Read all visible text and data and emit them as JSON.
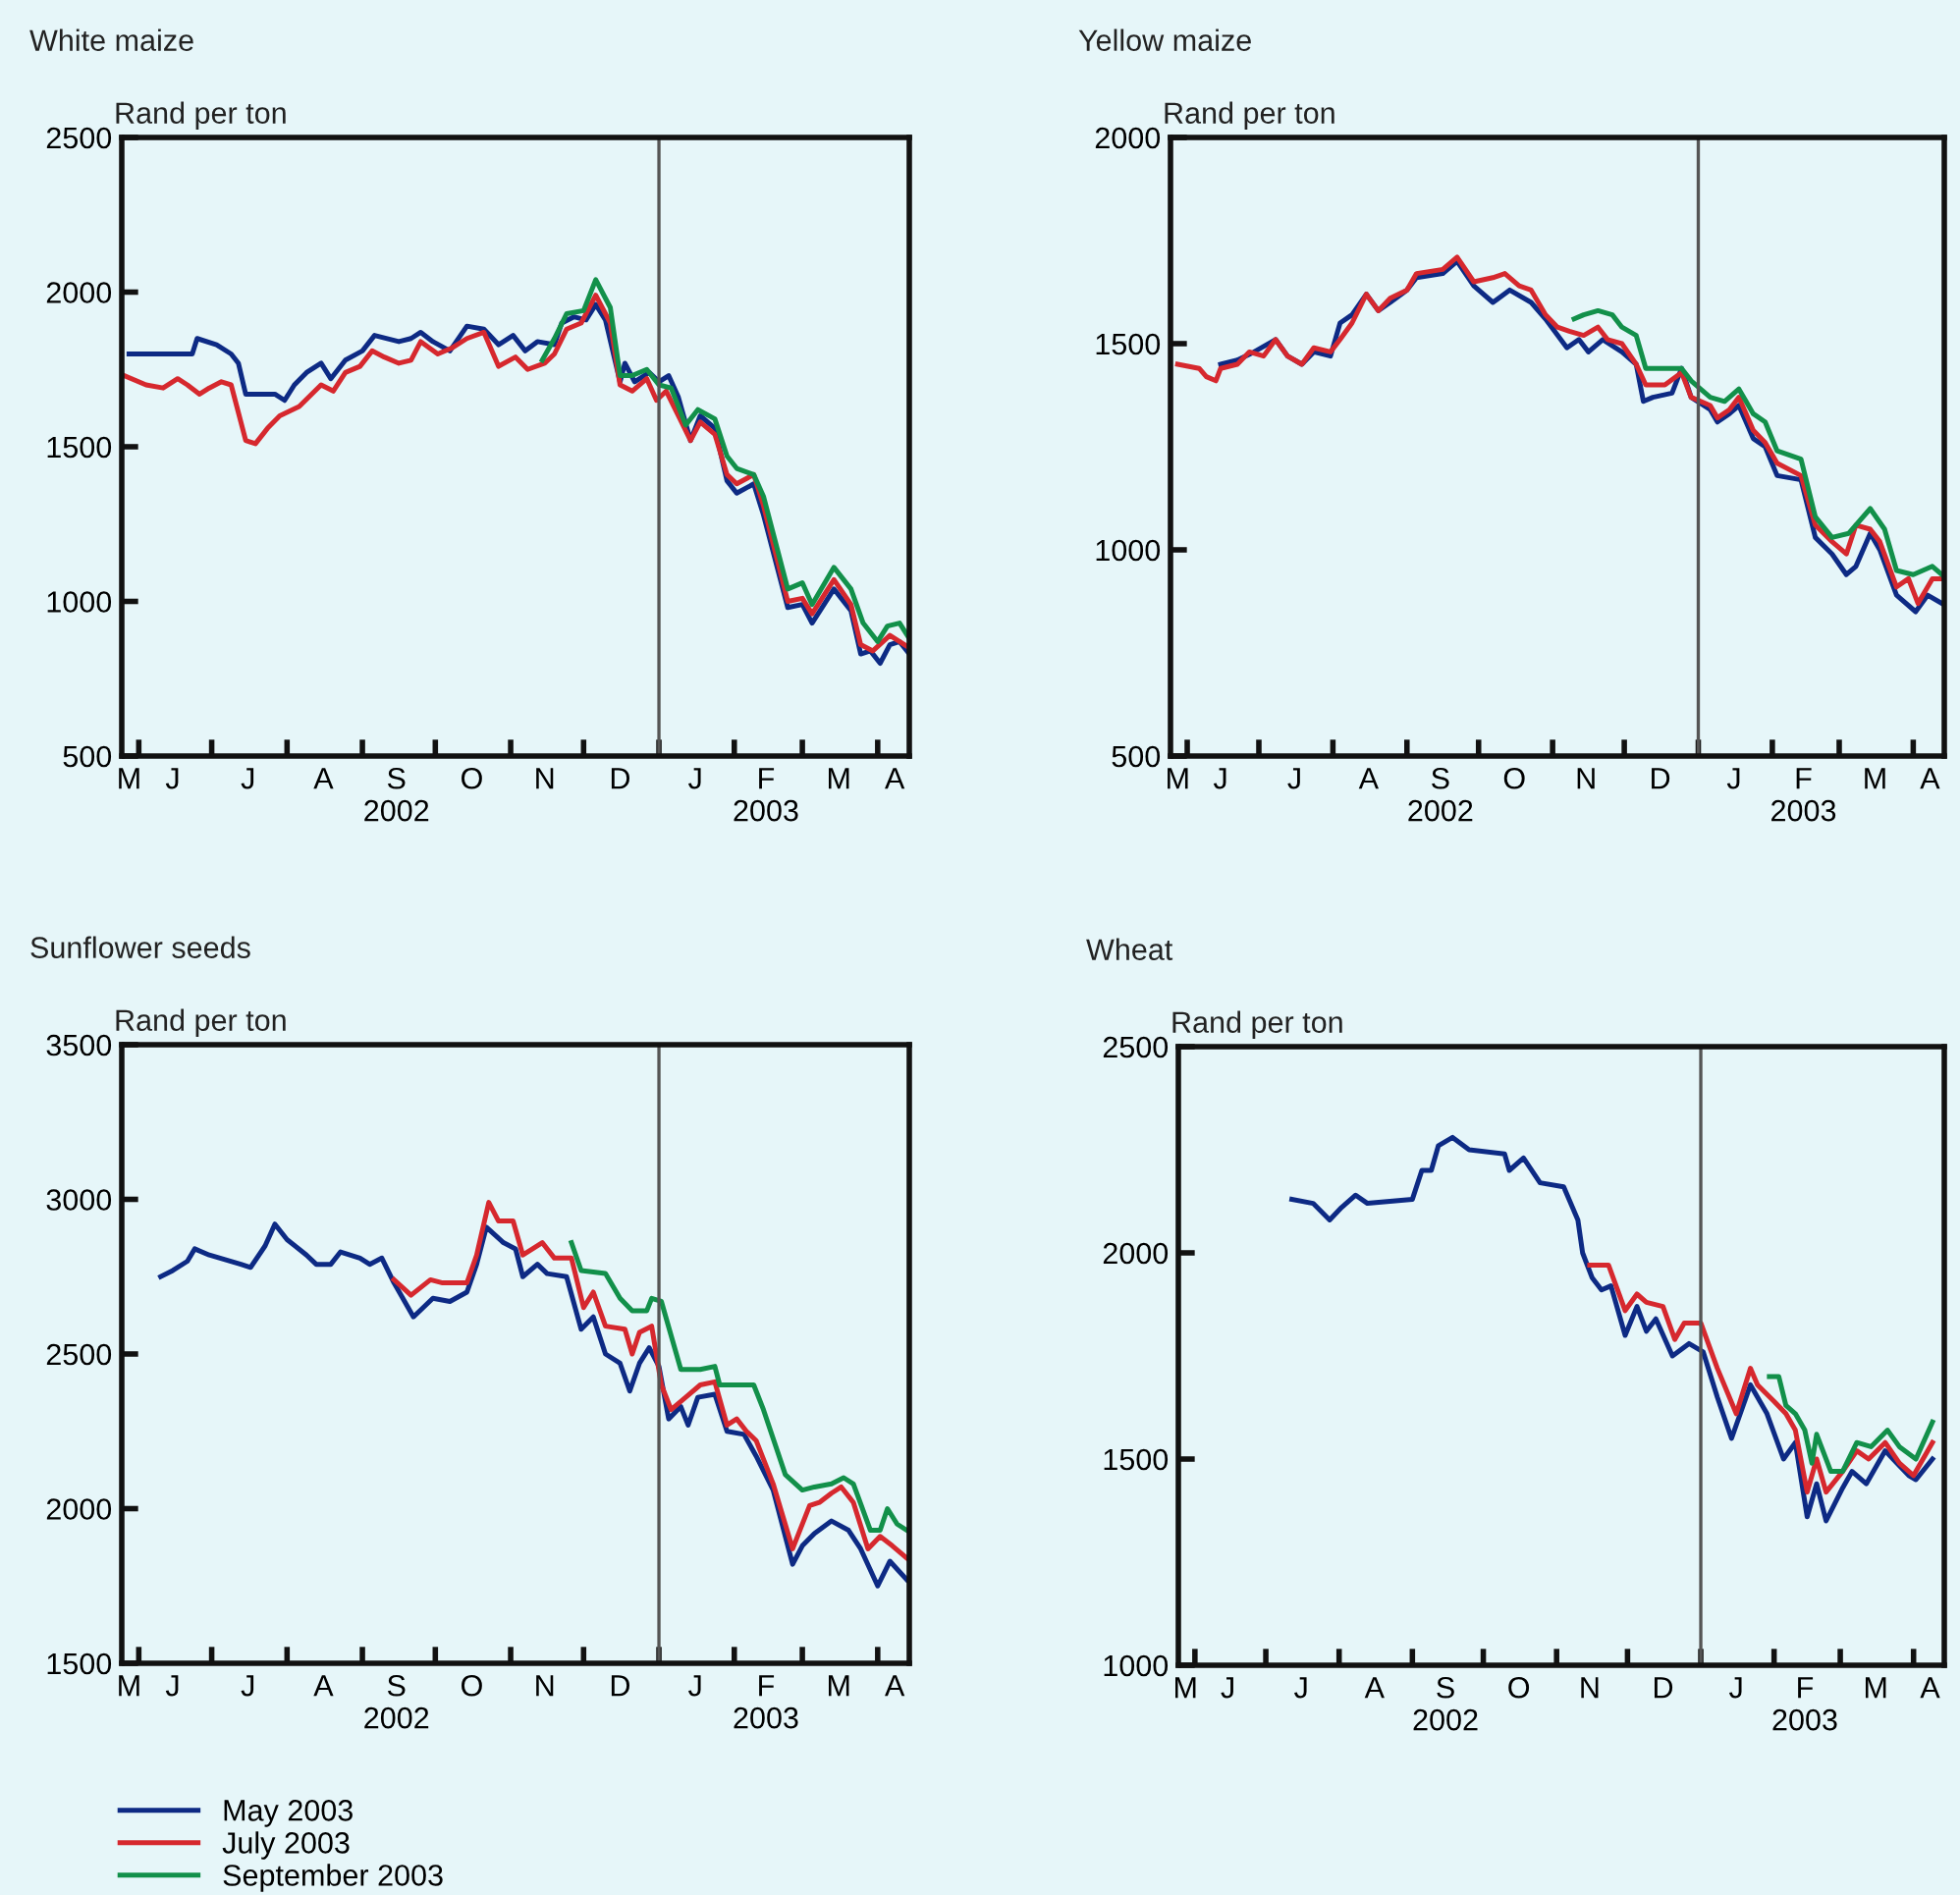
{
  "chart_data": [
    {
      "type": "line",
      "title": "White maize",
      "ylabel": "Rand per ton",
      "xlim": [
        "2002-05-25",
        "2003-04-14"
      ],
      "legend": "bottom",
      "xticks": [
        {
          "value": "2002-05-28",
          "label": "M"
        },
        {
          "value": "2002-06-01",
          "label": null
        },
        {
          "value": "2002-06-15",
          "label": "J"
        },
        {
          "value": "2002-07-01",
          "label": null
        },
        {
          "value": "2002-07-16",
          "label": "J"
        },
        {
          "value": "2002-08-01",
          "label": null
        },
        {
          "value": "2002-08-16",
          "label": "A"
        },
        {
          "value": "2002-09-01",
          "label": null
        },
        {
          "value": "2002-09-15",
          "label": "S\n2002"
        },
        {
          "value": "2002-10-01",
          "label": null
        },
        {
          "value": "2002-10-16",
          "label": "O"
        },
        {
          "value": "2002-11-01",
          "label": null
        },
        {
          "value": "2002-11-15",
          "label": "N"
        },
        {
          "value": "2002-12-01",
          "label": null
        },
        {
          "value": "2002-12-16",
          "label": "D"
        },
        {
          "value": "2003-01-01",
          "label": null
        },
        {
          "value": "2003-01-16",
          "label": "J"
        },
        {
          "value": "2003-02-01",
          "label": null
        },
        {
          "value": "2003-02-14",
          "label": "F\n2003"
        },
        {
          "value": "2003-03-01",
          "label": null
        },
        {
          "value": "2003-03-16",
          "label": "M"
        },
        {
          "value": "2003-04-01",
          "label": null
        },
        {
          "value": "2003-04-08",
          "label": "A"
        }
      ],
      "ylim": [
        500,
        2500
      ],
      "yticks": [
        500,
        1000,
        1500,
        2000,
        2500
      ],
      "ref_lines": [
        {
          "axis": "x",
          "value": "2003-01-01",
          "color": "#555555"
        }
      ],
      "series": [
        {
          "name": "May 2003",
          "color": "#0d2a84",
          "x": [
            "2002-05-28",
            "2002-06-23",
            "2002-06-25",
            "2002-07-03",
            "2002-07-09",
            "2002-07-12",
            "2002-07-15",
            "2002-07-21",
            "2002-07-27",
            "2002-07-31",
            "2002-08-04",
            "2002-08-09",
            "2002-08-15",
            "2002-08-19",
            "2002-08-25",
            "2002-09-01",
            "2002-09-06",
            "2002-09-16",
            "2002-09-21",
            "2002-09-25",
            "2002-09-30",
            "2002-10-07",
            "2002-10-14",
            "2002-10-21",
            "2002-10-27",
            "2002-11-02",
            "2002-11-07",
            "2002-11-12",
            "2002-11-19",
            "2002-11-22",
            "2002-11-27",
            "2002-12-02",
            "2002-12-06",
            "2002-12-10",
            "2002-12-16",
            "2002-12-18",
            "2002-12-22",
            "2002-12-28",
            "2003-01-01",
            "2003-01-05",
            "2003-01-09",
            "2003-01-14",
            "2003-01-18",
            "2003-01-24",
            "2003-01-29",
            "2003-02-02",
            "2003-02-09",
            "2003-02-13",
            "2003-02-23",
            "2003-03-01",
            "2003-03-05",
            "2003-03-14",
            "2003-03-21",
            "2003-03-25",
            "2003-03-29",
            "2003-04-02",
            "2003-04-06",
            "2003-04-10",
            "2003-04-14"
          ],
          "values": [
            1800,
            1800,
            1850,
            1830,
            1800,
            1770,
            1670,
            1670,
            1670,
            1650,
            1700,
            1740,
            1770,
            1720,
            1780,
            1810,
            1860,
            1840,
            1850,
            1870,
            1840,
            1810,
            1890,
            1880,
            1830,
            1860,
            1810,
            1840,
            1830,
            1900,
            1920,
            1910,
            1960,
            1910,
            1710,
            1770,
            1710,
            1740,
            1710,
            1730,
            1660,
            1520,
            1600,
            1560,
            1390,
            1350,
            1380,
            1280,
            980,
            990,
            930,
            1040,
            970,
            830,
            840,
            800,
            860,
            870,
            830
          ]
        },
        {
          "name": "July 2003",
          "color": "#d6282e",
          "x": [
            "2002-05-26",
            "2002-06-04",
            "2002-06-11",
            "2002-06-17",
            "2002-06-21",
            "2002-06-26",
            "2002-06-30",
            "2002-07-05",
            "2002-07-09",
            "2002-07-15",
            "2002-07-19",
            "2002-07-24",
            "2002-07-29",
            "2002-08-06",
            "2002-08-15",
            "2002-08-20",
            "2002-08-25",
            "2002-08-31",
            "2002-09-05",
            "2002-09-10",
            "2002-09-16",
            "2002-09-21",
            "2002-09-25",
            "2002-10-02",
            "2002-10-08",
            "2002-10-14",
            "2002-10-21",
            "2002-10-27",
            "2002-11-03",
            "2002-11-08",
            "2002-11-15",
            "2002-11-19",
            "2002-11-24",
            "2002-11-30",
            "2002-12-06",
            "2002-12-12",
            "2002-12-16",
            "2002-12-21",
            "2002-12-27",
            "2002-12-31",
            "2003-01-04",
            "2003-01-09",
            "2003-01-14",
            "2003-01-18",
            "2003-01-24",
            "2003-01-29",
            "2003-02-02",
            "2003-02-09",
            "2003-02-13",
            "2003-02-23",
            "2003-03-01",
            "2003-03-05",
            "2003-03-14",
            "2003-03-21",
            "2003-03-25",
            "2003-03-30",
            "2003-04-06",
            "2003-04-14"
          ],
          "values": [
            1730,
            1700,
            1690,
            1720,
            1700,
            1670,
            1690,
            1710,
            1700,
            1520,
            1510,
            1560,
            1600,
            1630,
            1700,
            1680,
            1740,
            1760,
            1810,
            1790,
            1770,
            1780,
            1840,
            1800,
            1820,
            1850,
            1870,
            1760,
            1790,
            1750,
            1770,
            1800,
            1880,
            1900,
            1990,
            1900,
            1700,
            1680,
            1720,
            1650,
            1680,
            1600,
            1520,
            1580,
            1540,
            1410,
            1380,
            1410,
            1310,
            1000,
            1010,
            960,
            1070,
            990,
            860,
            840,
            890,
            850
          ]
        },
        {
          "name": "September 2003",
          "color": "#12904a",
          "x": [
            "2002-11-14",
            "2002-11-19",
            "2002-11-24",
            "2002-12-01",
            "2002-12-06",
            "2002-12-12",
            "2002-12-16",
            "2002-12-21",
            "2002-12-27",
            "2003-01-01",
            "2003-01-06",
            "2003-01-12",
            "2003-01-17",
            "2003-01-24",
            "2003-01-29",
            "2003-02-02",
            "2003-02-09",
            "2003-02-13",
            "2003-02-23",
            "2003-03-01",
            "2003-03-05",
            "2003-03-14",
            "2003-03-21",
            "2003-03-26",
            "2003-04-01",
            "2003-04-05",
            "2003-04-10",
            "2003-04-14"
          ],
          "values": [
            1780,
            1850,
            1930,
            1940,
            2040,
            1950,
            1730,
            1730,
            1750,
            1700,
            1690,
            1570,
            1620,
            1590,
            1470,
            1430,
            1410,
            1340,
            1040,
            1060,
            990,
            1110,
            1040,
            930,
            870,
            920,
            930,
            880
          ]
        }
      ]
    },
    {
      "type": "line",
      "title": "Yellow maize",
      "ylabel": "Rand per ton",
      "xlim": [
        "2002-05-25",
        "2003-04-14"
      ],
      "xticks": [
        {
          "value": "2002-05-28",
          "label": "M"
        },
        {
          "value": "2002-06-01",
          "label": null
        },
        {
          "value": "2002-06-15",
          "label": "J"
        },
        {
          "value": "2002-07-01",
          "label": null
        },
        {
          "value": "2002-07-16",
          "label": "J"
        },
        {
          "value": "2002-08-01",
          "label": null
        },
        {
          "value": "2002-08-16",
          "label": "A"
        },
        {
          "value": "2002-09-01",
          "label": null
        },
        {
          "value": "2002-09-15",
          "label": "S\n2002"
        },
        {
          "value": "2002-10-01",
          "label": null
        },
        {
          "value": "2002-10-16",
          "label": "O"
        },
        {
          "value": "2002-11-01",
          "label": null
        },
        {
          "value": "2002-11-15",
          "label": "N"
        },
        {
          "value": "2002-12-01",
          "label": null
        },
        {
          "value": "2002-12-16",
          "label": "D"
        },
        {
          "value": "2003-01-01",
          "label": null
        },
        {
          "value": "2003-01-16",
          "label": "J"
        },
        {
          "value": "2003-02-01",
          "label": null
        },
        {
          "value": "2003-02-14",
          "label": "F\n2003"
        },
        {
          "value": "2003-03-01",
          "label": null
        },
        {
          "value": "2003-03-16",
          "label": "M"
        },
        {
          "value": "2003-04-01",
          "label": null
        },
        {
          "value": "2003-04-08",
          "label": "A"
        }
      ],
      "ylim": [
        500,
        2000
      ],
      "yticks": [
        500,
        1000,
        1500,
        2000
      ],
      "ref_lines": [
        {
          "axis": "x",
          "value": "2003-01-01",
          "color": "#555555"
        }
      ],
      "series": [
        {
          "color": "#0d2a84",
          "x": [
            "2002-06-15",
            "2002-06-22",
            "2002-06-29",
            "2002-07-08",
            "2002-07-13",
            "2002-07-19",
            "2002-07-24",
            "2002-07-31",
            "2002-08-04",
            "2002-08-09",
            "2002-08-15",
            "2002-08-20",
            "2002-08-25",
            "2002-09-01",
            "2002-09-05",
            "2002-09-16",
            "2002-09-22",
            "2002-09-29",
            "2002-10-07",
            "2002-10-14",
            "2002-10-23",
            "2002-10-29",
            "2002-11-07",
            "2002-11-12",
            "2002-11-16",
            "2002-11-22",
            "2002-11-30",
            "2002-12-06",
            "2002-12-09",
            "2002-12-13",
            "2002-12-21",
            "2002-12-25",
            "2002-12-29",
            "2003-01-06",
            "2003-01-09",
            "2003-01-14",
            "2003-01-18",
            "2003-01-24",
            "2003-01-29",
            "2003-02-03",
            "2003-02-13",
            "2003-02-19",
            "2003-02-26",
            "2003-03-04",
            "2003-03-08",
            "2003-03-14",
            "2003-03-18",
            "2003-03-25",
            "2003-04-02",
            "2003-04-07",
            "2003-04-13"
          ],
          "values": [
            1450,
            1460,
            1480,
            1510,
            1470,
            1450,
            1480,
            1470,
            1550,
            1570,
            1620,
            1580,
            1600,
            1630,
            1660,
            1670,
            1700,
            1640,
            1600,
            1630,
            1600,
            1560,
            1490,
            1510,
            1480,
            1510,
            1480,
            1450,
            1360,
            1370,
            1380,
            1440,
            1370,
            1340,
            1310,
            1330,
            1350,
            1270,
            1250,
            1180,
            1170,
            1030,
            990,
            940,
            960,
            1040,
            1000,
            890,
            850,
            890,
            870
          ]
        },
        {
          "color": "#d6282e",
          "x": [
            "2002-05-28",
            "2002-06-06",
            "2002-06-09",
            "2002-06-13",
            "2002-06-15",
            "2002-06-22",
            "2002-06-27",
            "2002-07-03",
            "2002-07-08",
            "2002-07-13",
            "2002-07-19",
            "2002-07-24",
            "2002-07-31",
            "2002-08-04",
            "2002-08-09",
            "2002-08-15",
            "2002-08-20",
            "2002-08-25",
            "2002-09-01",
            "2002-09-05",
            "2002-09-16",
            "2002-09-22",
            "2002-09-29",
            "2002-10-07",
            "2002-10-12",
            "2002-10-18",
            "2002-10-23",
            "2002-10-29",
            "2002-11-03",
            "2002-11-08",
            "2002-11-14",
            "2002-11-20",
            "2002-11-24",
            "2002-11-30",
            "2002-12-06",
            "2002-12-10",
            "2002-12-18",
            "2002-12-25",
            "2002-12-29",
            "2003-01-06",
            "2003-01-09",
            "2003-01-14",
            "2003-01-18",
            "2003-01-24",
            "2003-01-29",
            "2003-02-03",
            "2003-02-13",
            "2003-02-19",
            "2003-02-26",
            "2003-03-04",
            "2003-03-08",
            "2003-03-14",
            "2003-03-18",
            "2003-03-25",
            "2003-03-30",
            "2003-04-03",
            "2003-04-09",
            "2003-04-13"
          ],
          "values": [
            1450,
            1440,
            1420,
            1410,
            1440,
            1450,
            1480,
            1470,
            1510,
            1470,
            1450,
            1490,
            1480,
            1510,
            1550,
            1620,
            1580,
            1610,
            1630,
            1670,
            1680,
            1710,
            1650,
            1660,
            1670,
            1640,
            1630,
            1570,
            1540,
            1530,
            1520,
            1540,
            1510,
            1500,
            1450,
            1400,
            1400,
            1430,
            1370,
            1350,
            1320,
            1340,
            1370,
            1290,
            1260,
            1210,
            1180,
            1060,
            1020,
            990,
            1060,
            1050,
            1020,
            910,
            930,
            870,
            930,
            930
          ]
        },
        {
          "color": "#12904a",
          "x": [
            "2002-11-10",
            "2002-11-14",
            "2002-11-20",
            "2002-11-26",
            "2002-11-30",
            "2002-12-06",
            "2002-12-10",
            "2002-12-18",
            "2002-12-25",
            "2002-12-29",
            "2003-01-06",
            "2003-01-12",
            "2003-01-18",
            "2003-01-24",
            "2003-01-29",
            "2003-02-03",
            "2003-02-13",
            "2003-02-19",
            "2003-02-26",
            "2003-03-05",
            "2003-03-14",
            "2003-03-20",
            "2003-03-25",
            "2003-04-01",
            "2003-04-09",
            "2003-04-13"
          ],
          "values": [
            1560,
            1570,
            1580,
            1570,
            1540,
            1520,
            1440,
            1440,
            1440,
            1410,
            1370,
            1360,
            1390,
            1330,
            1310,
            1240,
            1220,
            1080,
            1030,
            1040,
            1100,
            1050,
            950,
            940,
            960,
            940
          ]
        }
      ]
    },
    {
      "type": "line",
      "title": "Sunflower seeds",
      "ylabel": "Rand per ton",
      "xlim": [
        "2002-05-25",
        "2003-04-14"
      ],
      "xticks": [
        {
          "value": "2002-05-28",
          "label": "M"
        },
        {
          "value": "2002-06-01",
          "label": null
        },
        {
          "value": "2002-06-15",
          "label": "J"
        },
        {
          "value": "2002-07-01",
          "label": null
        },
        {
          "value": "2002-07-16",
          "label": "J"
        },
        {
          "value": "2002-08-01",
          "label": null
        },
        {
          "value": "2002-08-16",
          "label": "A"
        },
        {
          "value": "2002-09-01",
          "label": null
        },
        {
          "value": "2002-09-15",
          "label": "S\n2002"
        },
        {
          "value": "2002-10-01",
          "label": null
        },
        {
          "value": "2002-10-16",
          "label": "O"
        },
        {
          "value": "2002-11-01",
          "label": null
        },
        {
          "value": "2002-11-15",
          "label": "N"
        },
        {
          "value": "2002-12-01",
          "label": null
        },
        {
          "value": "2002-12-16",
          "label": "D"
        },
        {
          "value": "2003-01-01",
          "label": null
        },
        {
          "value": "2003-01-16",
          "label": "J"
        },
        {
          "value": "2003-02-01",
          "label": null
        },
        {
          "value": "2003-02-14",
          "label": "F\n2003"
        },
        {
          "value": "2003-03-01",
          "label": null
        },
        {
          "value": "2003-03-16",
          "label": "M"
        },
        {
          "value": "2003-04-01",
          "label": null
        },
        {
          "value": "2003-04-08",
          "label": "A"
        }
      ],
      "ylim": [
        1500,
        3500
      ],
      "yticks": [
        1500,
        2000,
        2500,
        3000,
        3500
      ],
      "ref_lines": [
        {
          "axis": "x",
          "value": "2003-01-01",
          "color": "#555555"
        }
      ],
      "series": [
        {
          "color": "#0d2a84",
          "x": [
            "2002-06-10",
            "2002-06-15",
            "2002-06-21",
            "2002-06-24",
            "2002-06-30",
            "2002-07-13",
            "2002-07-17",
            "2002-07-23",
            "2002-07-27",
            "2002-08-01",
            "2002-08-09",
            "2002-08-13",
            "2002-08-19",
            "2002-08-23",
            "2002-08-31",
            "2002-09-04",
            "2002-09-09",
            "2002-09-14",
            "2002-09-22",
            "2002-09-26",
            "2002-09-30",
            "2002-10-07",
            "2002-10-14",
            "2002-10-18",
            "2002-10-22",
            "2002-10-29",
            "2002-11-03",
            "2002-11-06",
            "2002-11-12",
            "2002-11-16",
            "2002-11-24",
            "2002-11-30",
            "2002-12-05",
            "2002-12-10",
            "2002-12-16",
            "2002-12-20",
            "2002-12-24",
            "2002-12-28",
            "2003-01-01",
            "2003-01-05",
            "2003-01-10",
            "2003-01-13",
            "2003-01-17",
            "2003-01-24",
            "2003-01-29",
            "2003-02-05",
            "2003-02-10",
            "2003-02-17",
            "2003-02-25",
            "2003-03-01",
            "2003-03-06",
            "2003-03-13",
            "2003-03-20",
            "2003-03-25",
            "2003-04-01",
            "2003-04-06",
            "2003-04-13"
          ],
          "values": [
            2750,
            2770,
            2800,
            2840,
            2820,
            2790,
            2780,
            2850,
            2920,
            2870,
            2820,
            2790,
            2790,
            2830,
            2810,
            2790,
            2810,
            2730,
            2620,
            2650,
            2680,
            2670,
            2700,
            2790,
            2910,
            2860,
            2840,
            2750,
            2790,
            2760,
            2750,
            2580,
            2620,
            2500,
            2470,
            2380,
            2470,
            2520,
            2460,
            2290,
            2330,
            2270,
            2360,
            2370,
            2250,
            2240,
            2170,
            2060,
            1820,
            1880,
            1920,
            1960,
            1930,
            1870,
            1750,
            1830,
            1770
          ]
        },
        {
          "color": "#d6282e",
          "x": [
            "2002-09-14",
            "2002-09-21",
            "2002-09-29",
            "2002-10-04",
            "2002-10-14",
            "2002-10-18",
            "2002-10-23",
            "2002-10-27",
            "2002-11-02",
            "2002-11-06",
            "2002-11-14",
            "2002-11-19",
            "2002-11-26",
            "2002-12-01",
            "2002-12-05",
            "2002-12-10",
            "2002-12-18",
            "2002-12-21",
            "2002-12-24",
            "2002-12-29",
            "2003-01-02",
            "2003-01-06",
            "2003-01-12",
            "2003-01-18",
            "2003-01-24",
            "2003-01-29",
            "2003-02-02",
            "2003-02-06",
            "2003-02-10",
            "2003-02-17",
            "2003-02-25",
            "2003-03-04",
            "2003-03-08",
            "2003-03-13",
            "2003-03-17",
            "2003-03-22",
            "2003-03-28",
            "2003-04-02",
            "2003-04-07",
            "2003-04-13"
          ],
          "values": [
            2740,
            2690,
            2740,
            2730,
            2730,
            2820,
            2990,
            2930,
            2930,
            2820,
            2860,
            2810,
            2810,
            2650,
            2700,
            2590,
            2580,
            2500,
            2570,
            2590,
            2400,
            2320,
            2360,
            2400,
            2410,
            2270,
            2290,
            2250,
            2220,
            2080,
            1870,
            2010,
            2020,
            2050,
            2070,
            2020,
            1870,
            1910,
            1880,
            1840
          ]
        },
        {
          "color": "#12904a",
          "x": [
            "2002-11-26",
            "2002-11-30",
            "2002-12-10",
            "2002-12-16",
            "2002-12-21",
            "2002-12-27",
            "2002-12-29",
            "2003-01-02",
            "2003-01-10",
            "2003-01-18",
            "2003-01-24",
            "2003-01-26",
            "2003-02-09",
            "2003-02-13",
            "2003-02-22",
            "2003-03-01",
            "2003-03-06",
            "2003-03-13",
            "2003-03-18",
            "2003-03-22",
            "2003-03-29",
            "2003-04-02",
            "2003-04-05",
            "2003-04-09",
            "2003-04-13"
          ],
          "values": [
            2860,
            2770,
            2760,
            2680,
            2640,
            2640,
            2680,
            2670,
            2450,
            2450,
            2460,
            2400,
            2400,
            2320,
            2110,
            2060,
            2070,
            2080,
            2100,
            2080,
            1930,
            1930,
            2000,
            1950,
            1930
          ]
        }
      ]
    },
    {
      "type": "line",
      "title": "Wheat",
      "ylabel": "Rand per ton",
      "xlim": [
        "2002-05-25",
        "2003-04-14"
      ],
      "xticks": [
        {
          "value": "2002-05-28",
          "label": "M"
        },
        {
          "value": "2002-06-01",
          "label": null
        },
        {
          "value": "2002-06-15",
          "label": "J"
        },
        {
          "value": "2002-07-01",
          "label": null
        },
        {
          "value": "2002-07-16",
          "label": "J"
        },
        {
          "value": "2002-08-01",
          "label": null
        },
        {
          "value": "2002-08-16",
          "label": "A"
        },
        {
          "value": "2002-09-01",
          "label": null
        },
        {
          "value": "2002-09-15",
          "label": "S\n2002"
        },
        {
          "value": "2002-10-01",
          "label": null
        },
        {
          "value": "2002-10-16",
          "label": "O"
        },
        {
          "value": "2002-11-01",
          "label": null
        },
        {
          "value": "2002-11-15",
          "label": "N"
        },
        {
          "value": "2002-12-01",
          "label": null
        },
        {
          "value": "2002-12-16",
          "label": "D"
        },
        {
          "value": "2003-01-01",
          "label": null
        },
        {
          "value": "2003-01-16",
          "label": "J"
        },
        {
          "value": "2003-02-01",
          "label": null
        },
        {
          "value": "2003-02-14",
          "label": "F\n2003"
        },
        {
          "value": "2003-03-01",
          "label": null
        },
        {
          "value": "2003-03-16",
          "label": "M"
        },
        {
          "value": "2003-04-01",
          "label": null
        },
        {
          "value": "2003-04-08",
          "label": "A"
        }
      ],
      "ylim": [
        1000,
        2500
      ],
      "yticks": [
        1000,
        1500,
        2000,
        2500
      ],
      "ref_lines": [
        {
          "axis": "x",
          "value": "2003-01-01",
          "color": "#555555"
        }
      ],
      "series": [
        {
          "color": "#0d2a84",
          "x": [
            "2002-07-12",
            "2002-07-21",
            "2002-07-28",
            "2002-08-02",
            "2002-08-08",
            "2002-08-13",
            "2002-09-01",
            "2002-09-05",
            "2002-09-09",
            "2002-09-12",
            "2002-09-18",
            "2002-09-25",
            "2002-10-10",
            "2002-10-12",
            "2002-10-18",
            "2002-10-25",
            "2002-11-04",
            "2002-11-10",
            "2002-11-12",
            "2002-11-16",
            "2002-11-20",
            "2002-11-24",
            "2002-11-30",
            "2002-12-05",
            "2002-12-09",
            "2002-12-13",
            "2002-12-20",
            "2002-12-27",
            "2003-01-02",
            "2003-01-08",
            "2003-01-14",
            "2003-01-22",
            "2003-01-29",
            "2003-02-05",
            "2003-02-10",
            "2003-02-15",
            "2003-02-19",
            "2003-02-23",
            "2003-03-02",
            "2003-03-06",
            "2003-03-12",
            "2003-03-20",
            "2003-03-25",
            "2003-03-30",
            "2003-04-02",
            "2003-04-09"
          ],
          "values": [
            2130,
            2120,
            2080,
            2110,
            2140,
            2120,
            2130,
            2200,
            2200,
            2260,
            2280,
            2250,
            2240,
            2200,
            2230,
            2170,
            2160,
            2080,
            2000,
            1940,
            1910,
            1920,
            1800,
            1870,
            1810,
            1840,
            1750,
            1780,
            1760,
            1650,
            1550,
            1680,
            1610,
            1500,
            1540,
            1360,
            1440,
            1350,
            1430,
            1470,
            1440,
            1520,
            1490,
            1460,
            1450,
            1500
          ]
        },
        {
          "color": "#d6282e",
          "x": [
            "2002-11-15",
            "2002-11-23",
            "2002-11-30",
            "2002-12-05",
            "2002-12-09",
            "2002-12-16",
            "2002-12-21",
            "2002-12-25",
            "2003-01-01",
            "2003-01-08",
            "2003-01-16",
            "2003-01-22",
            "2003-01-25",
            "2003-02-01",
            "2003-02-06",
            "2003-02-10",
            "2003-02-15",
            "2003-02-19",
            "2003-02-23",
            "2003-03-02",
            "2003-03-08",
            "2003-03-13",
            "2003-03-20",
            "2003-03-26",
            "2003-04-01",
            "2003-04-09"
          ],
          "values": [
            1970,
            1970,
            1860,
            1900,
            1880,
            1870,
            1790,
            1830,
            1830,
            1720,
            1610,
            1720,
            1680,
            1640,
            1610,
            1570,
            1420,
            1500,
            1420,
            1470,
            1520,
            1500,
            1540,
            1490,
            1460,
            1540
          ]
        },
        {
          "color": "#12904a",
          "x": [
            "2003-01-30",
            "2003-02-03",
            "2003-02-06",
            "2003-02-10",
            "2003-02-14",
            "2003-02-17",
            "2003-02-19",
            "2003-02-25",
            "2003-03-02",
            "2003-03-08",
            "2003-03-14",
            "2003-03-21",
            "2003-03-26",
            "2003-04-02",
            "2003-04-09"
          ],
          "values": [
            1700,
            1700,
            1630,
            1610,
            1570,
            1490,
            1560,
            1470,
            1470,
            1540,
            1530,
            1570,
            1530,
            1500,
            1590
          ]
        }
      ]
    }
  ]
}
